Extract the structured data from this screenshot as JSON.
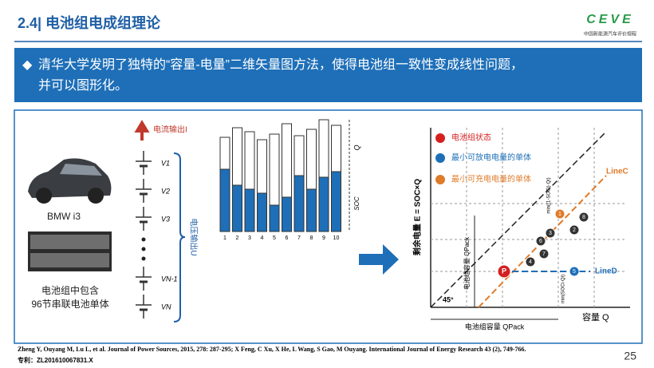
{
  "header": {
    "title": "2.4| 电池组电成组理论",
    "logo": "CEVE",
    "logo_sub": "中国新能源汽车评价规程"
  },
  "banner": {
    "bullet": "◆",
    "lines": [
      "清华大学发明了独特的“容量-电量”二维矢量图方法，使得电池组一致性变成线性问题，",
      "并可以图形化。"
    ]
  },
  "left": {
    "car": "BMW i3",
    "note": [
      "电池组中包含",
      "96节串联电池单体"
    ]
  },
  "circuit": {
    "current": "电流输出I",
    "voltage": "电压输出U",
    "cells": [
      "V1",
      "V2",
      "V3",
      "VN-1",
      "VN"
    ]
  },
  "bars": {
    "categories": [
      "1",
      "2",
      "3",
      "4",
      "5",
      "6",
      "7",
      "8",
      "9",
      "10"
    ],
    "q_label": "Q",
    "soc_label": "SOC"
  },
  "vector": {
    "y_axis": "剩余电量 E = SOC×Q",
    "x_axis": "容量 Q",
    "legend": [
      "电池组状态",
      "最小可放电电量的单体",
      "最小可充电电量的单体"
    ],
    "line_c": "LineC",
    "line_d": "LineD",
    "angle": "45°",
    "pack_x": "电池组容量 QPack",
    "pack_y": "电池组容量 QPack",
    "min_d": "min(SOCi·Qi)",
    "min_c": "min((1-SOCi)·Qi)",
    "p": "P",
    "points": [
      "1",
      "2",
      "3",
      "4",
      "5",
      "6",
      "7",
      "8"
    ]
  },
  "footer": {
    "refs": "Zheng Y, Ouyang M, Lu L, et al. Journal of Power Sources, 2015, 278: 287-295; X Feng, C Xu, X He, L Wang, S Gao, M Ouyang. International Journal of Energy Research 43 (2), 749-766.",
    "patent": "专利：ZL201610067831.X",
    "page": "25"
  }
}
